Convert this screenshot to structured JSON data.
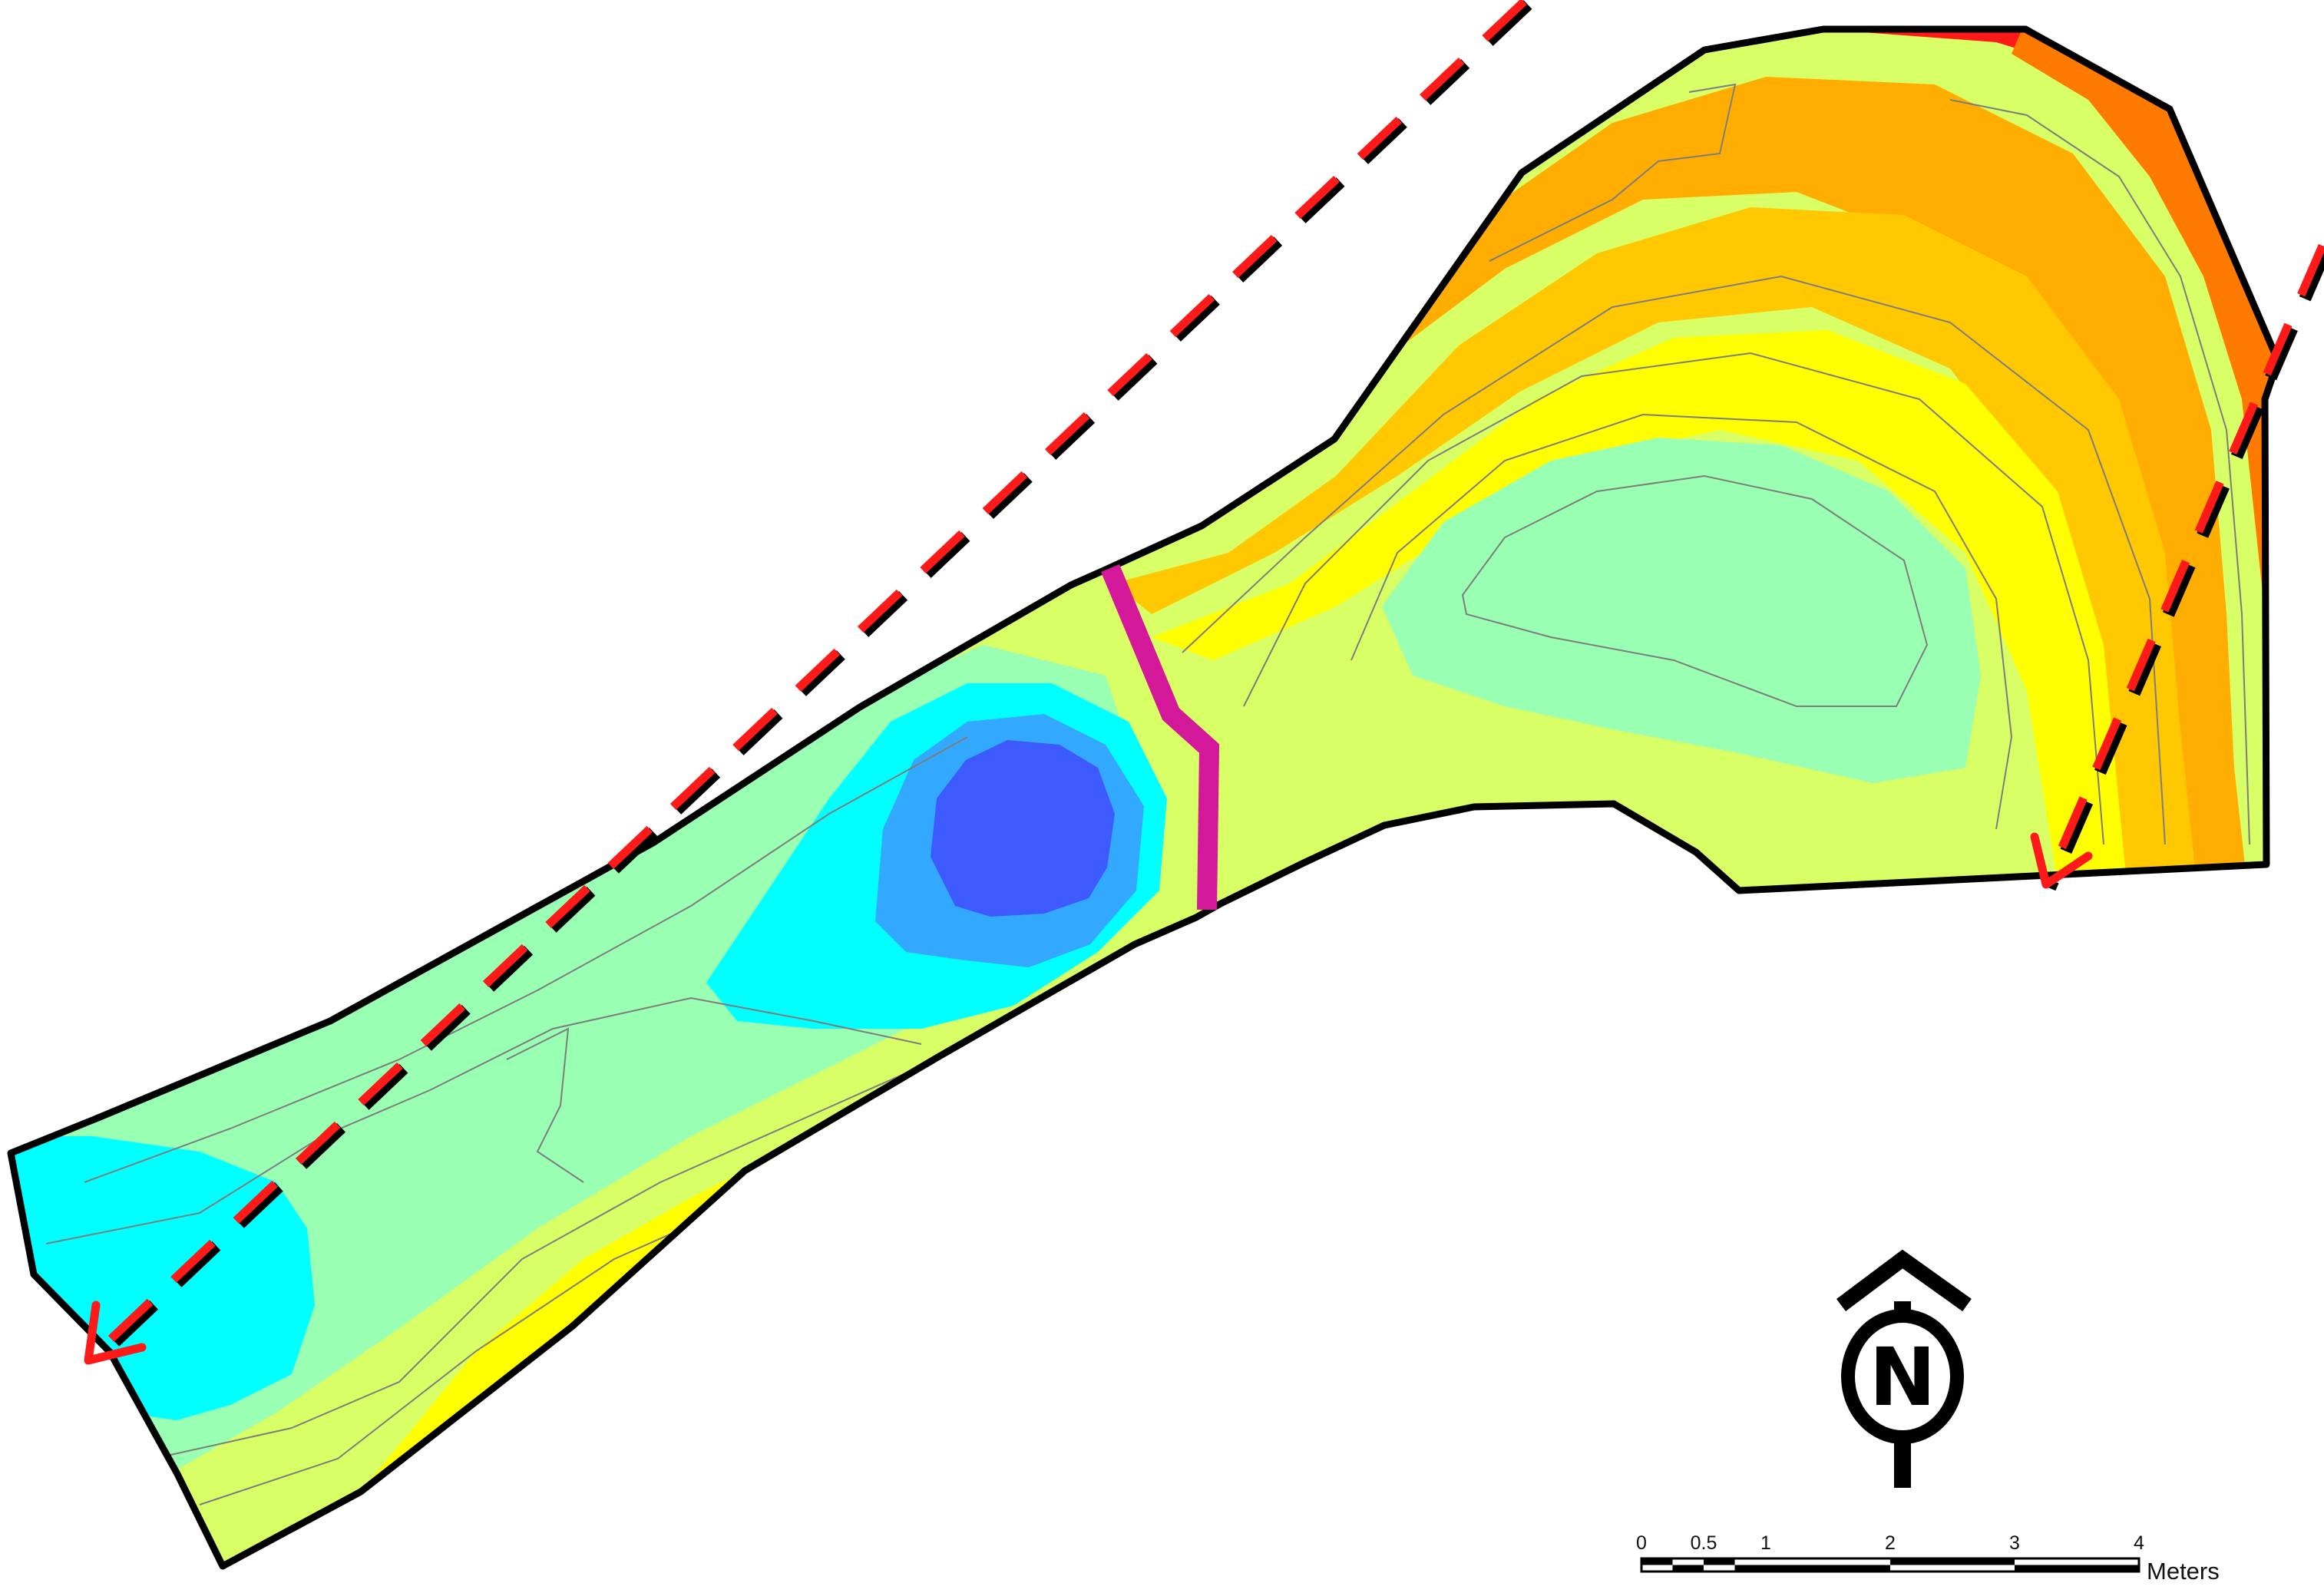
{
  "map": {
    "colors": {
      "boundary": "#000000",
      "flow_arrow": "#ff1a1a",
      "flow_arrow_shadow": "#000000",
      "divider": "#d4189a",
      "contour_line": "#7d7d7d",
      "zone_red": "#ff1a1a",
      "zone_dark_orange": "#ff7a00",
      "zone_orange": "#ffad00",
      "zone_light_orange": "#ffc800",
      "zone_yellow": "#ffff00",
      "zone_yellow_green": "#d9ff66",
      "zone_light_green": "#99ffb3",
      "zone_cyan": "#00ffff",
      "zone_sky_blue": "#33a8ff",
      "zone_blue": "#3d5aff"
    },
    "north_arrow": {
      "label": "N",
      "icon": "north-arrow-icon"
    },
    "scale_bar": {
      "tick_labels": [
        "0",
        "0.5",
        "1",
        "2",
        "3",
        "4"
      ],
      "tick_values": [
        0,
        0.5,
        1,
        2,
        3,
        4
      ],
      "units": "Meters"
    }
  }
}
